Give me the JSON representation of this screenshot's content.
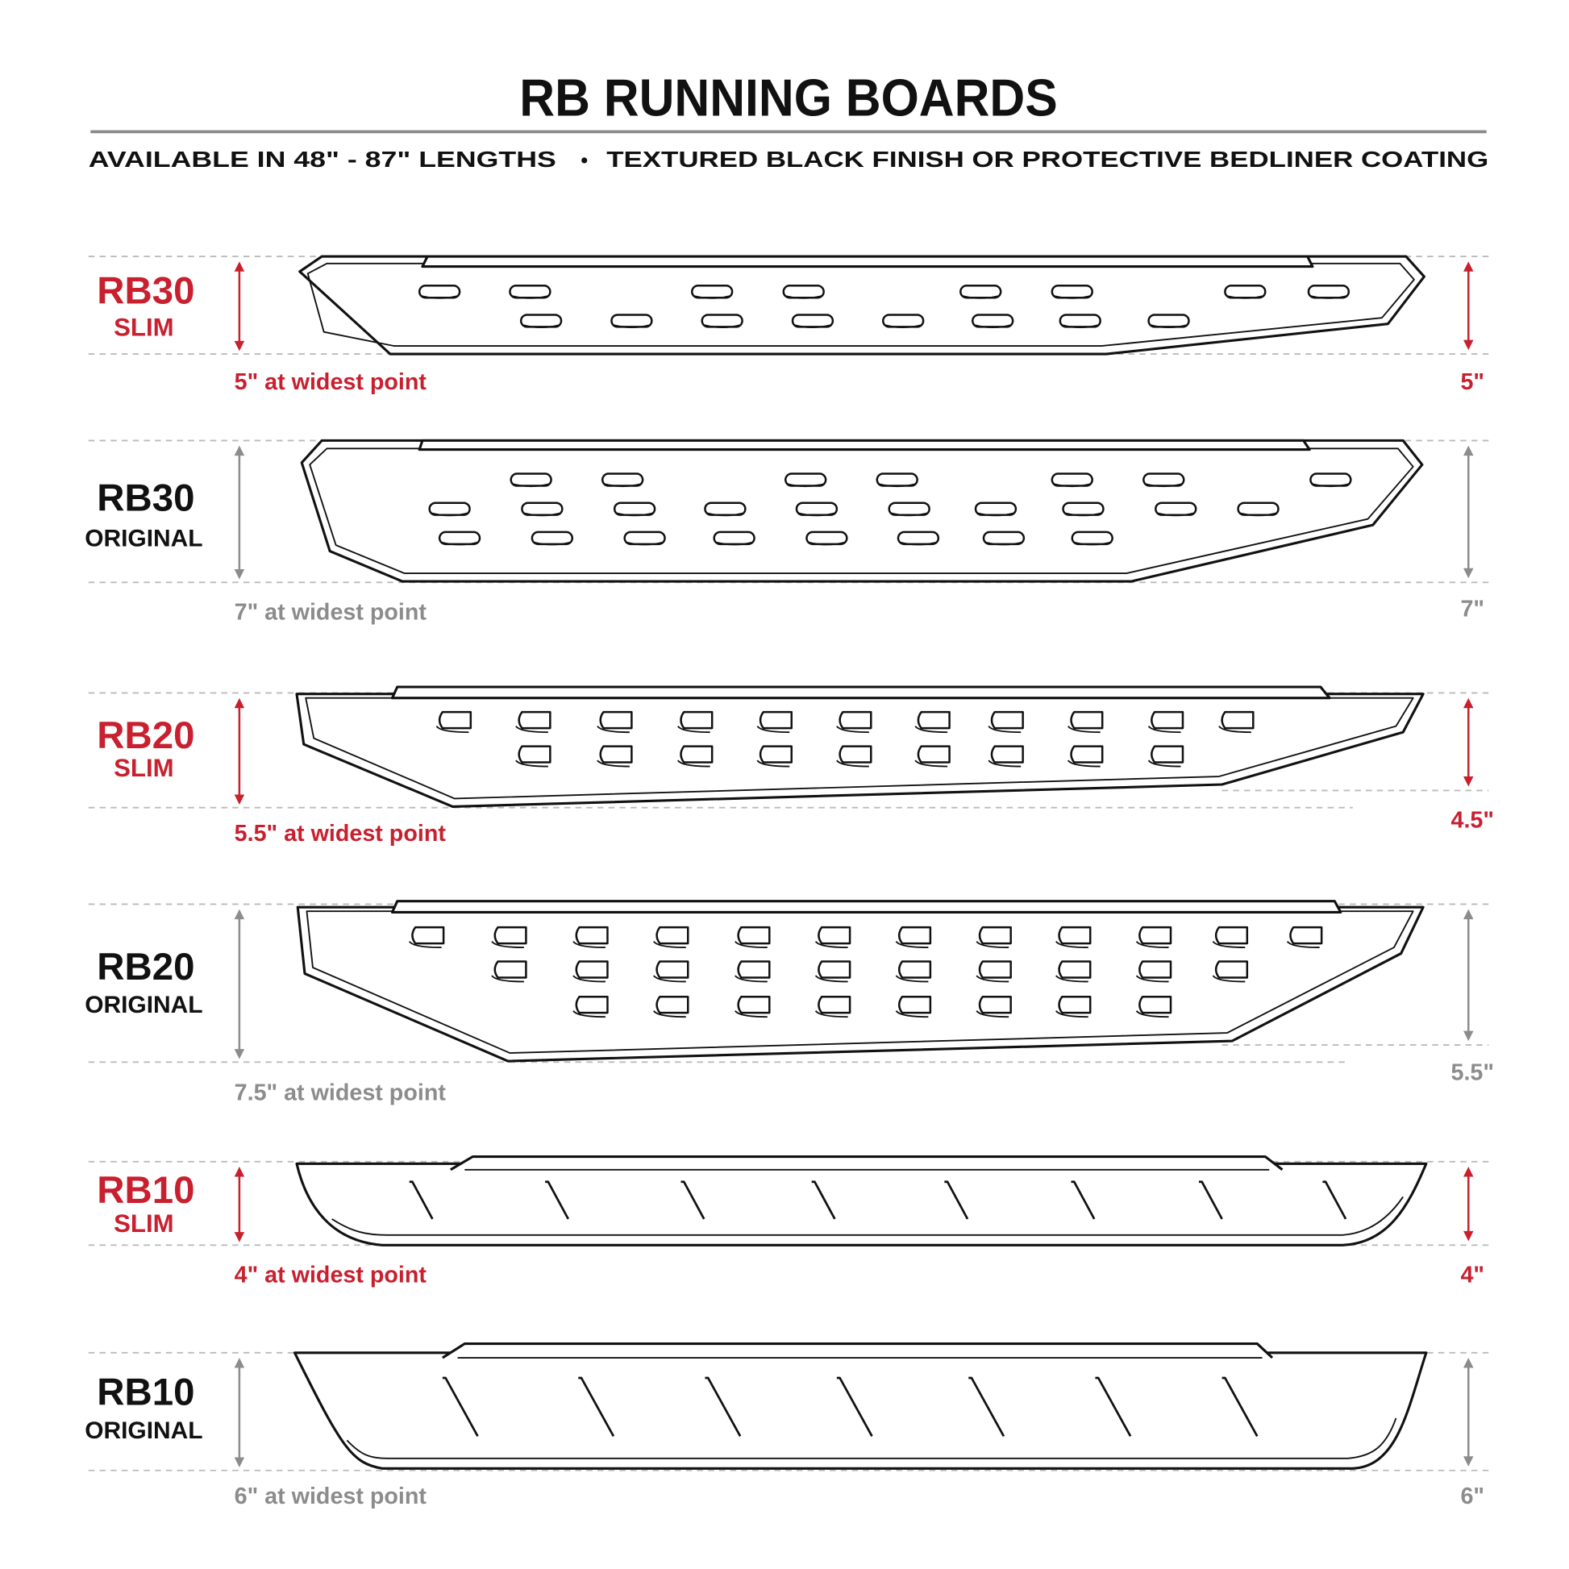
{
  "header": {
    "title": "RB RUNNING BOARDS",
    "subtitle_left": "AVAILABLE IN 48\" - 87\" LENGTHS",
    "subtitle_bullet": "•",
    "subtitle_right": "TEXTURED BLACK FINISH OR PROTECTIVE BEDLINER COATING"
  },
  "colors": {
    "accent_red": "#c8202f",
    "dim_gray": "#8c8c8c",
    "ink": "#111111"
  },
  "boards": [
    {
      "model": "RB30",
      "variant": "SLIM",
      "caption": "5\" at widest point",
      "right_dim": "5\"",
      "highlight": true
    },
    {
      "model": "RB30",
      "variant": "ORIGINAL",
      "caption": "7\" at widest point",
      "right_dim": "7\"",
      "highlight": false
    },
    {
      "model": "RB20",
      "variant": "SLIM",
      "caption": "5.5\" at widest point",
      "right_dim": "4.5\"",
      "highlight": true
    },
    {
      "model": "RB20",
      "variant": "ORIGINAL",
      "caption": "7.5\" at widest point",
      "right_dim": "5.5\"",
      "highlight": false
    },
    {
      "model": "RB10",
      "variant": "SLIM",
      "caption": "4\" at widest point",
      "right_dim": "4\"",
      "highlight": true
    },
    {
      "model": "RB10",
      "variant": "ORIGINAL",
      "caption": "6\" at widest point",
      "right_dim": "6\"",
      "highlight": false
    }
  ]
}
